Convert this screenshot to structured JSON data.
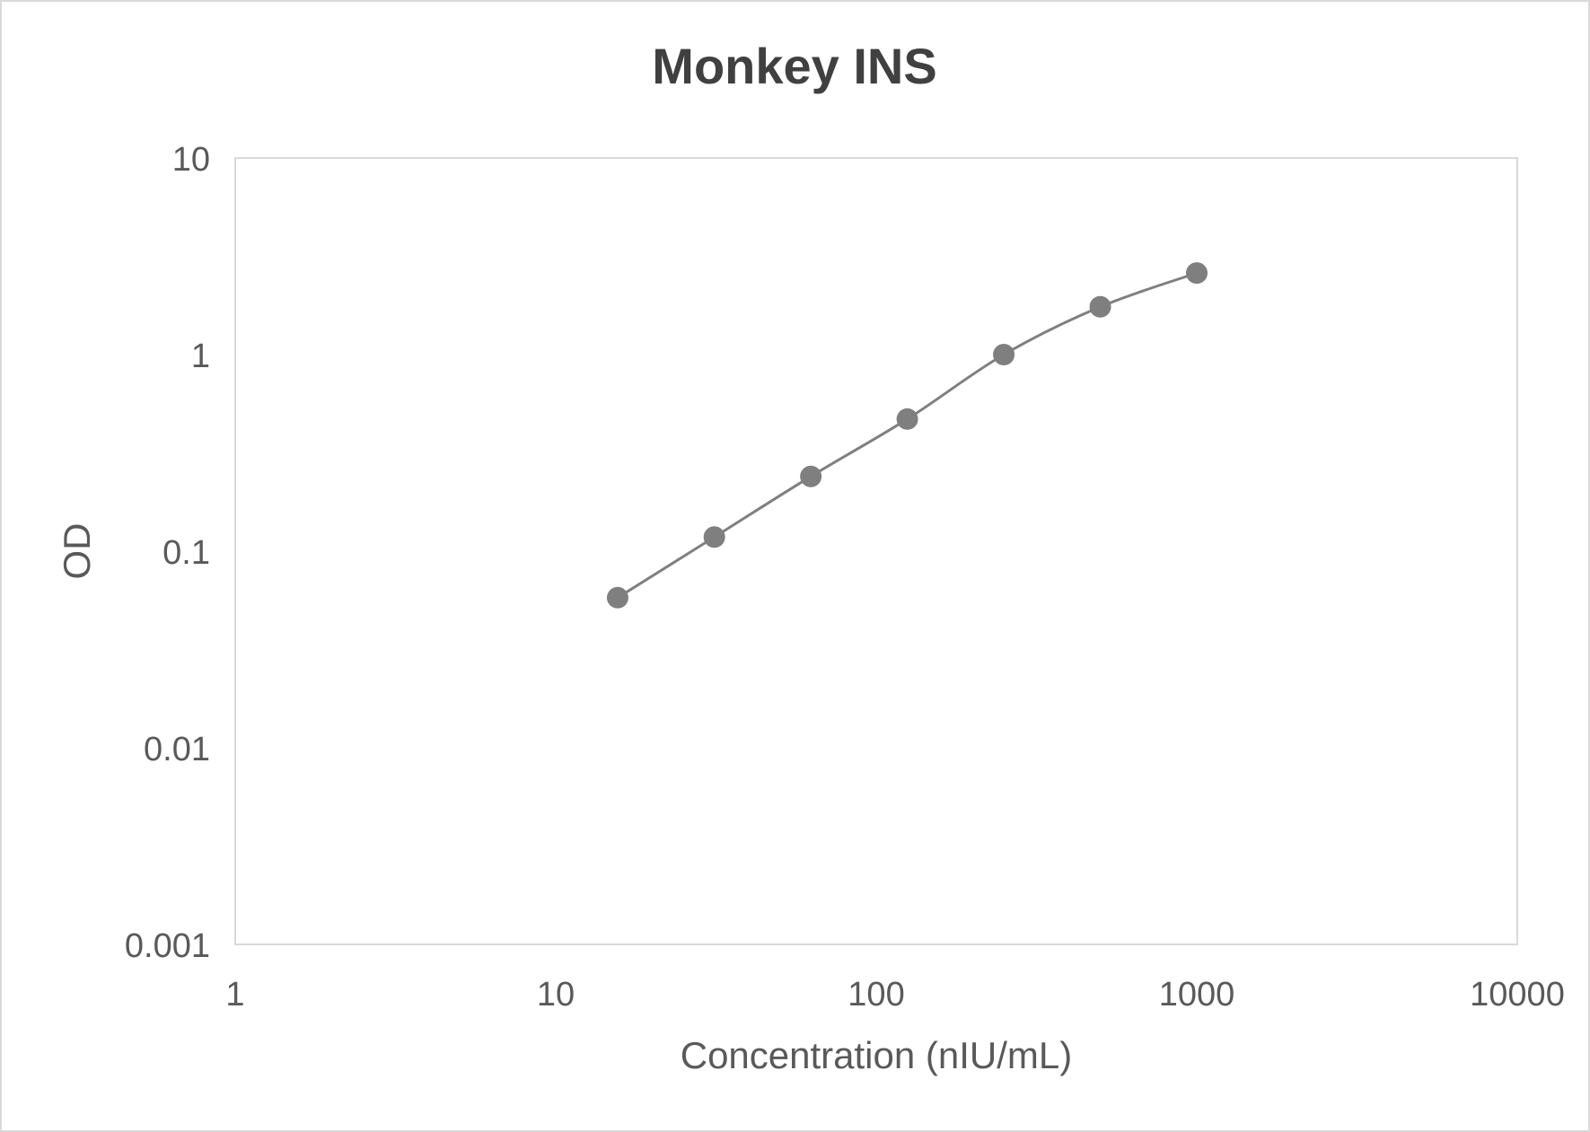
{
  "chart_data": {
    "type": "line",
    "title": "Monkey INS",
    "xlabel": "Concentration (nIU/mL)",
    "ylabel": "OD",
    "x_scale": "log",
    "y_scale": "log",
    "xlim": [
      1,
      10000
    ],
    "ylim": [
      0.001,
      10
    ],
    "x_ticks": [
      "1",
      "10",
      "100",
      "1000",
      "10000"
    ],
    "y_ticks": [
      "0.001",
      "0.01",
      "0.1",
      "1",
      "10"
    ],
    "grid": false,
    "legend": "none",
    "series": [
      {
        "x": [
          15.6,
          31.25,
          62.5,
          125,
          250,
          500,
          1000
        ],
        "y": [
          0.058,
          0.118,
          0.24,
          0.47,
          1.0,
          1.75,
          2.6
        ],
        "marker": "circle",
        "smooth": true
      }
    ],
    "colors": {
      "series": "#7f7f7f",
      "axis_text": "#595959",
      "title_text": "#404040",
      "plot_border": "#d9d9d9"
    }
  }
}
